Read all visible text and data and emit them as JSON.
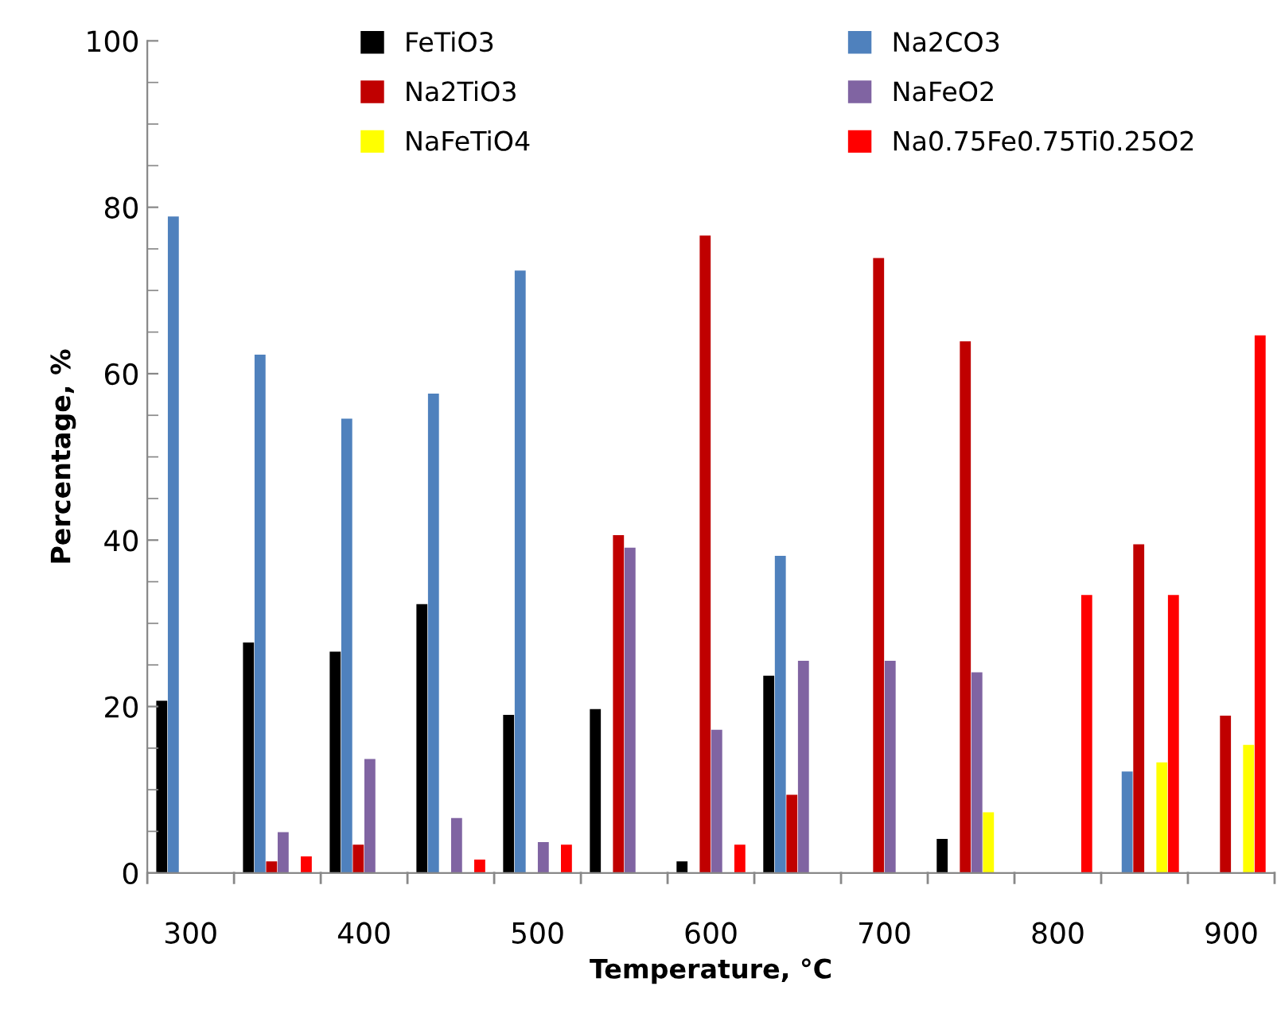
{
  "chart_data": {
    "type": "bar",
    "xlabel": "Temperature, °C",
    "ylabel": "Percentage, %",
    "categories": [
      "300",
      null,
      "400",
      null,
      "500",
      null,
      "600",
      null,
      "700",
      null,
      "800",
      null,
      "900"
    ],
    "series": [
      {
        "name": "FeTiO3",
        "color": "#000000",
        "values": [
          20.7,
          27.7,
          26.6,
          32.3,
          19.0,
          19.7,
          1.4,
          23.7,
          0,
          4.1,
          0,
          0,
          0
        ]
      },
      {
        "name": "Na2CO3",
        "color": "#4f81bd",
        "values": [
          78.9,
          62.3,
          54.6,
          57.6,
          72.4,
          0,
          0,
          38.1,
          0,
          0,
          0,
          12.2,
          0
        ]
      },
      {
        "name": "Na2TiO3",
        "color": "#c00000",
        "values": [
          0,
          1.4,
          3.4,
          0,
          0,
          40.6,
          76.6,
          9.4,
          73.9,
          63.9,
          0,
          39.5,
          18.9
        ]
      },
      {
        "name": "NaFeO2",
        "color": "#8064a2",
        "values": [
          0,
          4.9,
          13.7,
          6.6,
          3.7,
          39.1,
          17.2,
          25.5,
          25.5,
          24.1,
          0,
          0,
          0
        ]
      },
      {
        "name": "NaFeTiO4",
        "color": "#ffff00",
        "values": [
          0,
          0,
          0,
          0,
          0,
          0,
          0,
          0,
          0,
          7.3,
          0,
          13.3,
          15.4
        ]
      },
      {
        "name": "Na0.75Fe0.75Ti0.25O2",
        "color": "#ff0000",
        "values": [
          0,
          2.0,
          0,
          1.6,
          3.4,
          0,
          3.4,
          0,
          0,
          0,
          33.4,
          33.4,
          64.6
        ]
      }
    ],
    "ylim": [
      0,
      100
    ],
    "yticks": [
      0,
      20,
      40,
      60,
      80,
      100
    ],
    "legend": "top",
    "grid": false
  }
}
